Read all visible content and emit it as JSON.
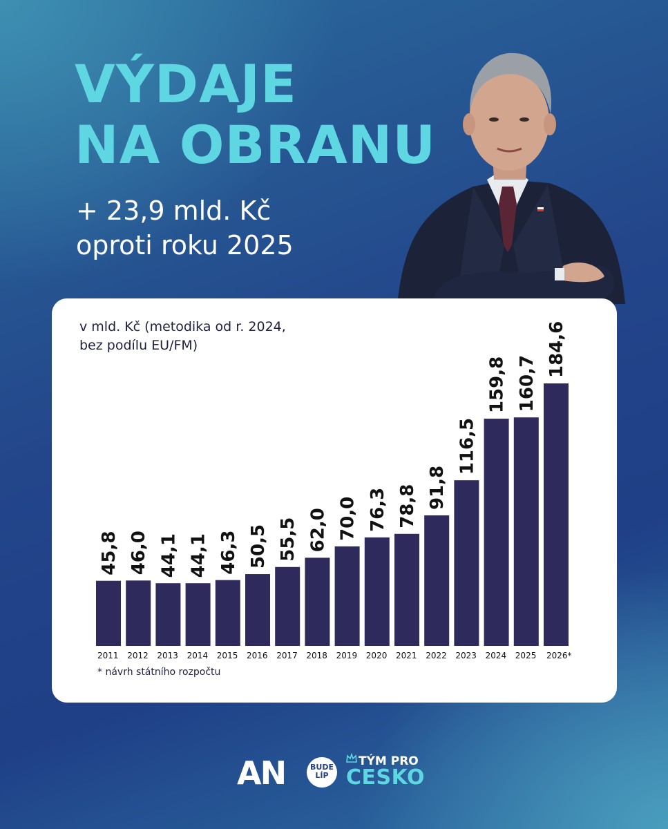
{
  "headline": {
    "line1": "VÝDAJE",
    "line2": "NA OBRANU",
    "delta_line1": "+ 23,9 mld. Kč",
    "delta_line2": "oproti roku 2025"
  },
  "chart_note": {
    "line1": "v mld. Kč (metodika od r. 2024,",
    "line2": "bez podílu EU/FM)"
  },
  "footnote": "* návrh státního rozpočtu",
  "colors": {
    "bar": "#2f2a5c",
    "title": "#5fd7e3",
    "card": "#ffffff"
  },
  "chart_data": {
    "type": "bar",
    "categories": [
      "2011",
      "2012",
      "2013",
      "2014",
      "2015",
      "2016",
      "2017",
      "2018",
      "2019",
      "2020",
      "2021",
      "2022",
      "2023",
      "2024",
      "2025",
      "2026*"
    ],
    "values": [
      45.8,
      46.0,
      44.1,
      44.1,
      46.3,
      50.5,
      55.5,
      62.0,
      70.0,
      76.3,
      78.8,
      91.8,
      116.5,
      159.8,
      160.7,
      184.6
    ],
    "value_labels": [
      "45,8",
      "46,0",
      "44,1",
      "44,1",
      "46,3",
      "50,5",
      "55,5",
      "62,0",
      "70,0",
      "76,3",
      "78,8",
      "91,8",
      "116,5",
      "159,8",
      "160,7",
      "184,6"
    ],
    "ylim": [
      0,
      184.6
    ],
    "grid": false,
    "legend": "none"
  },
  "footer": {
    "brand": "AN",
    "badge_top": "BUDE",
    "badge_bottom": "LÍP",
    "team_line1": "TÝM PRO",
    "team_line2": "CESKO"
  }
}
